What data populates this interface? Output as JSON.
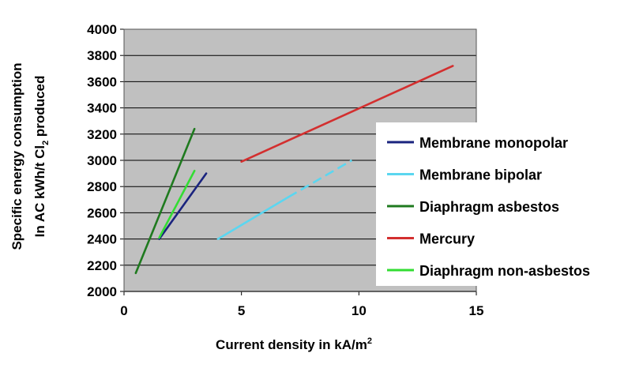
{
  "chart_data": {
    "type": "line",
    "title": "",
    "xlabel": "Current  density in kA/m",
    "xlabel_sup": "2",
    "ylabel_line1": "Specific energy consumption",
    "ylabel_line2_prefix": "In AC kWh/t Cl",
    "ylabel_line2_sub": "2",
    "ylabel_line2_suffix": " produced",
    "xlim": [
      0,
      15
    ],
    "ylim": [
      2000,
      4000
    ],
    "x_ticks": [
      0,
      5,
      10,
      15
    ],
    "y_ticks": [
      2000,
      2200,
      2400,
      2600,
      2800,
      3000,
      3200,
      3400,
      3600,
      3800,
      4000
    ],
    "grid": "horizontal",
    "plot_background": "#c0c0c0",
    "legend_position": "right",
    "series": [
      {
        "name": "Membrane monopolar",
        "color": "#1a237e",
        "points": [
          [
            1.5,
            2400
          ],
          [
            3.5,
            2900
          ]
        ]
      },
      {
        "name": "Membrane bipolar",
        "color": "#5bd6f0",
        "points": [
          [
            4.0,
            2400
          ],
          [
            7.0,
            2720
          ],
          [
            9.7,
            3000
          ]
        ],
        "dashed_from_index": 1
      },
      {
        "name": "Diaphragm asbestos",
        "color": "#1f7a1f",
        "points": [
          [
            0.5,
            2140
          ],
          [
            3.0,
            3240
          ]
        ]
      },
      {
        "name": "Mercury",
        "color": "#d32f2f",
        "points": [
          [
            5.0,
            2990
          ],
          [
            14.0,
            3720
          ]
        ]
      },
      {
        "name": "Diaphragm non-asbestos",
        "color": "#33dd33",
        "points": [
          [
            1.5,
            2410
          ],
          [
            3.0,
            2920
          ]
        ]
      }
    ]
  }
}
